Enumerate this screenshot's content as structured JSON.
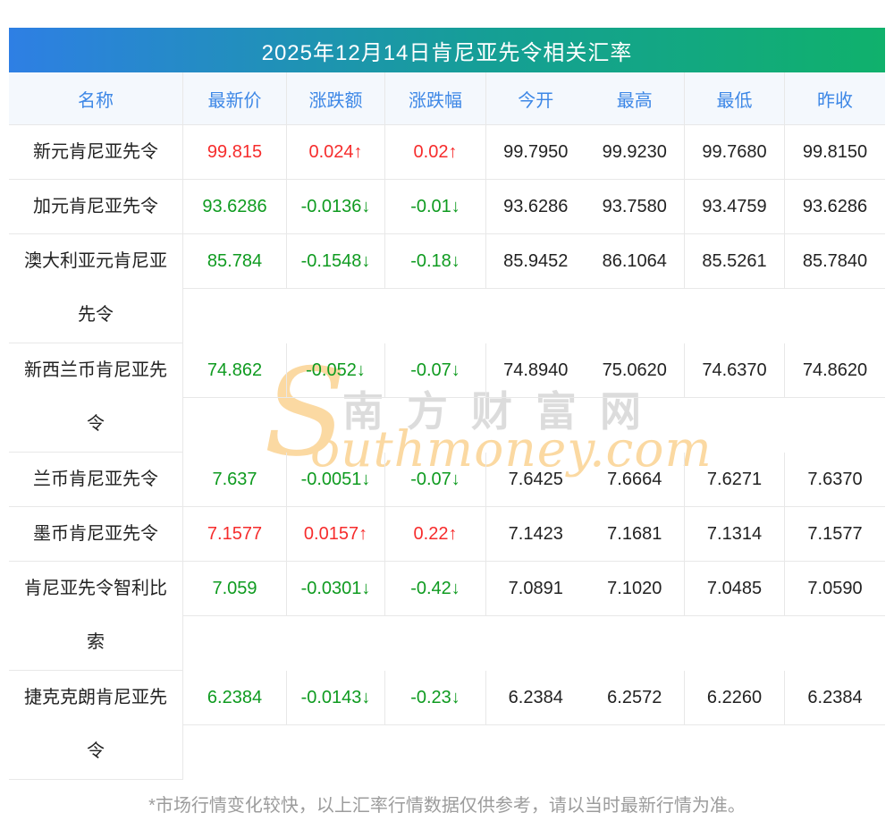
{
  "title": "2025年12月14日肯尼亚先令相关汇率",
  "table": {
    "headers": [
      "名称",
      "最新价",
      "涨跌额",
      "涨跌幅",
      "今开",
      "最高",
      "最低",
      "昨收"
    ],
    "rows": [
      {
        "name": "新元肯尼亚先令",
        "latest": "99.815",
        "change": "0.024↑",
        "change_pct": "0.02↑",
        "trend": "up",
        "tall": false,
        "open": "99.7950",
        "high": "99.9230",
        "low": "99.7680",
        "prev_close": "99.8150"
      },
      {
        "name": "加元肯尼亚先令",
        "latest": "93.6286",
        "change": "-0.0136↓",
        "change_pct": "-0.01↓",
        "trend": "down",
        "tall": false,
        "open": "93.6286",
        "high": "93.7580",
        "low": "93.4759",
        "prev_close": "93.6286"
      },
      {
        "name": "澳大利亚元肯尼亚先令",
        "latest": "85.784",
        "change": "-0.1548↓",
        "change_pct": "-0.18↓",
        "trend": "down",
        "tall": true,
        "open": "85.9452",
        "high": "86.1064",
        "low": "85.5261",
        "prev_close": "85.7840"
      },
      {
        "name": "新西兰币肯尼亚先令",
        "latest": "74.862",
        "change": "-0.052↓",
        "change_pct": "-0.07↓",
        "trend": "down",
        "tall": true,
        "open": "74.8940",
        "high": "75.0620",
        "low": "74.6370",
        "prev_close": "74.8620"
      },
      {
        "name": "兰币肯尼亚先令",
        "latest": "7.637",
        "change": "-0.0051↓",
        "change_pct": "-0.07↓",
        "trend": "down",
        "tall": false,
        "open": "7.6425",
        "high": "7.6664",
        "low": "7.6271",
        "prev_close": "7.6370"
      },
      {
        "name": "墨币肯尼亚先令",
        "latest": "7.1577",
        "change": "0.0157↑",
        "change_pct": "0.22↑",
        "trend": "up",
        "tall": false,
        "open": "7.1423",
        "high": "7.1681",
        "low": "7.1314",
        "prev_close": "7.1577"
      },
      {
        "name": "肯尼亚先令智利比索",
        "latest": "7.059",
        "change": "-0.0301↓",
        "change_pct": "-0.42↓",
        "trend": "down",
        "tall": true,
        "open": "7.0891",
        "high": "7.1020",
        "low": "7.0485",
        "prev_close": "7.0590"
      },
      {
        "name": "捷克克朗肯尼亚先令",
        "latest": "6.2384",
        "change": "-0.0143↓",
        "change_pct": "-0.23↓",
        "trend": "down",
        "tall": true,
        "open": "6.2384",
        "high": "6.2572",
        "low": "6.2260",
        "prev_close": "6.2384"
      }
    ]
  },
  "chart_data": {
    "type": "table",
    "title": "2025年12月14日肯尼亚先令相关汇率",
    "columns": [
      "名称",
      "最新价",
      "涨跌额",
      "涨跌幅",
      "今开",
      "最高",
      "最低",
      "昨收"
    ],
    "rows": [
      [
        "新元肯尼亚先令",
        "99.815",
        "0.024↑",
        "0.02↑",
        "99.7950",
        "99.9230",
        "99.7680",
        "99.8150"
      ],
      [
        "加元肯尼亚先令",
        "93.6286",
        "-0.0136↓",
        "-0.01↓",
        "93.6286",
        "93.7580",
        "93.4759",
        "93.6286"
      ],
      [
        "澳大利亚元肯尼亚先令",
        "85.784",
        "-0.1548↓",
        "-0.18↓",
        "85.9452",
        "86.1064",
        "85.5261",
        "85.7840"
      ],
      [
        "新西兰币肯尼亚先令",
        "74.862",
        "-0.052↓",
        "-0.07↓",
        "74.8940",
        "75.0620",
        "74.6370",
        "74.8620"
      ],
      [
        "兰币肯尼亚先令",
        "7.637",
        "-0.0051↓",
        "-0.07↓",
        "7.6425",
        "7.6664",
        "7.6271",
        "7.6370"
      ],
      [
        "墨币肯尼亚先令",
        "7.1577",
        "0.0157↑",
        "0.22↑",
        "7.1423",
        "7.1681",
        "7.1314",
        "7.1577"
      ],
      [
        "肯尼亚先令智利比索",
        "7.059",
        "-0.0301↓",
        "-0.42↓",
        "7.0891",
        "7.1020",
        "7.0485",
        "7.0590"
      ],
      [
        "捷克克朗肯尼亚先令",
        "6.2384",
        "-0.0143↓",
        "-0.23↓",
        "6.2384",
        "6.2572",
        "6.2260",
        "6.2384"
      ]
    ]
  },
  "watermark": {
    "swoosh": "S",
    "cn": "南方财富网",
    "en": "outhmoney.com"
  },
  "footnote": "*市场行情变化较快，以上汇率行情数据仅供参考，请以当时最新行情为准。",
  "colors": {
    "up_red": "#f62c2c",
    "down_green": "#0f9b20",
    "header_text_blue": "#3d87e6",
    "header_bg": "#f4f8fd",
    "title_gradient_left": "#2e7fe4",
    "title_gradient_right": "#10b16c",
    "border": "#e8e8e8",
    "watermark_orange": "#fbd9a2",
    "footnote_gray": "#9c9c9c"
  }
}
